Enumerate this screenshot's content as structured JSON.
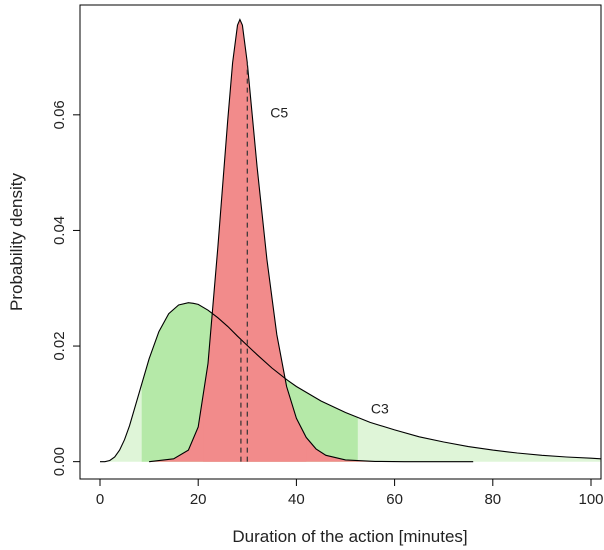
{
  "chart_data": {
    "type": "area",
    "xlabel": "Duration of the action [minutes]",
    "ylabel": "Probability density",
    "xlim": [
      0,
      102
    ],
    "ylim": [
      -0.003,
      0.079
    ],
    "x_ticks": [
      0,
      20,
      40,
      60,
      80,
      100
    ],
    "y_ticks": [
      0.0,
      0.02,
      0.04,
      0.06
    ],
    "y_tick_labels": [
      "0.00",
      "0.02",
      "0.04",
      "0.06"
    ],
    "grid": false,
    "series": [
      {
        "name": "C5",
        "color": "#f28b8b",
        "outer_color": "#f28b8b",
        "x": [
          10,
          15,
          18,
          20,
          22,
          24,
          26,
          27,
          28,
          28.5,
          29,
          30,
          31,
          32,
          34,
          36,
          38,
          40,
          42,
          44,
          46,
          50,
          56,
          62,
          68,
          76
        ],
        "values": [
          0.0,
          0.0005,
          0.002,
          0.006,
          0.017,
          0.037,
          0.059,
          0.069,
          0.0755,
          0.0765,
          0.0755,
          0.069,
          0.06,
          0.051,
          0.035,
          0.022,
          0.013,
          0.0075,
          0.0042,
          0.0022,
          0.0011,
          0.0003,
          5e-05,
          0.0,
          0.0,
          0.0
        ],
        "interval": [
          21,
          42
        ],
        "median": 30
      },
      {
        "name": "C3",
        "color": "#b5e9a8",
        "outer_color": "#dff5d8",
        "x": [
          0,
          1,
          2,
          3,
          4,
          5,
          6,
          8,
          10,
          12,
          14,
          16,
          18,
          19,
          20,
          22,
          24,
          26,
          28,
          30,
          32,
          35,
          38,
          40,
          45,
          50,
          55,
          60,
          65,
          70,
          75,
          80,
          85,
          90,
          95,
          100,
          102
        ],
        "values": [
          0.0,
          0.0,
          0.0002,
          0.0008,
          0.002,
          0.0038,
          0.0062,
          0.012,
          0.0178,
          0.0225,
          0.0256,
          0.0271,
          0.0275,
          0.0274,
          0.0272,
          0.0262,
          0.0249,
          0.0234,
          0.0217,
          0.0201,
          0.0185,
          0.0162,
          0.0142,
          0.013,
          0.0105,
          0.0085,
          0.0068,
          0.0055,
          0.0043,
          0.0034,
          0.0026,
          0.002,
          0.0015,
          0.0011,
          0.0008,
          0.0006,
          0.0005
        ],
        "interval": [
          8.5,
          52.5
        ],
        "median": 28.7
      }
    ],
    "annotations": [
      {
        "text": "C5",
        "x": 36.5,
        "y": 0.0595
      },
      {
        "text": "C3",
        "x": 57,
        "y": 0.0083
      }
    ]
  }
}
